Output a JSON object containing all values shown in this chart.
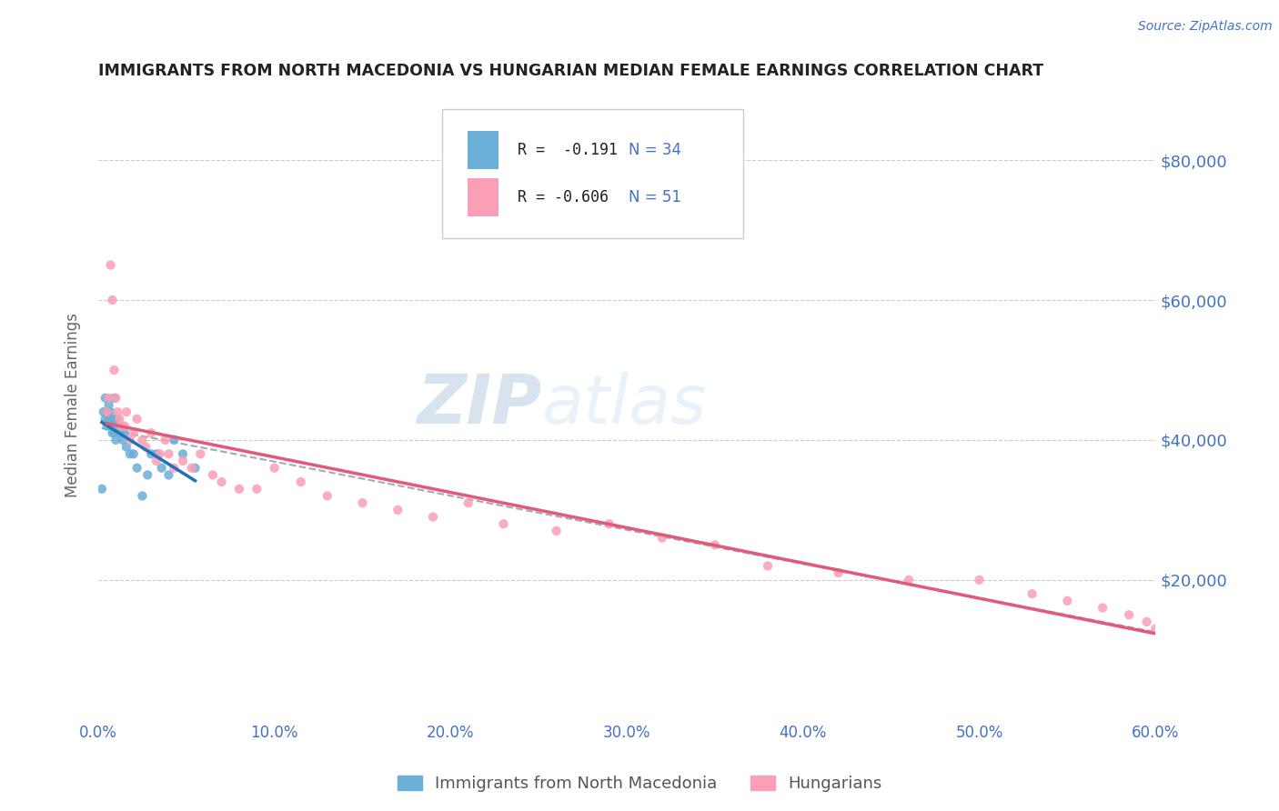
{
  "title": "IMMIGRANTS FROM NORTH MACEDONIA VS HUNGARIAN MEDIAN FEMALE EARNINGS CORRELATION CHART",
  "source": "Source: ZipAtlas.com",
  "ylabel": "Median Female Earnings",
  "xlim": [
    0.0,
    0.6
  ],
  "ylim": [
    0,
    90000
  ],
  "yticks": [
    0,
    20000,
    40000,
    60000,
    80000
  ],
  "ytick_labels": [
    "",
    "$20,000",
    "$40,000",
    "$60,000",
    "$80,000"
  ],
  "xticks": [
    0.0,
    0.1,
    0.2,
    0.3,
    0.4,
    0.5,
    0.6
  ],
  "xtick_labels": [
    "0.0%",
    "10.0%",
    "20.0%",
    "30.0%",
    "40.0%",
    "50.0%",
    "60.0%"
  ],
  "blue_color": "#6baed6",
  "pink_color": "#fa9fb5",
  "blue_line_color": "#2171b5",
  "pink_line_color": "#e05a7a",
  "gray_line_color": "#aaaaaa",
  "watermark_zip": "ZIP",
  "watermark_atlas": "atlas",
  "legend_r_blue": "R =  -0.191",
  "legend_n_blue": "N = 34",
  "legend_r_pink": "R = -0.606",
  "legend_n_pink": "N = 51",
  "legend_label_blue": "Immigrants from North Macedonia",
  "legend_label_pink": "Hungarians",
  "blue_x": [
    0.002,
    0.003,
    0.004,
    0.004,
    0.005,
    0.005,
    0.006,
    0.006,
    0.007,
    0.007,
    0.008,
    0.008,
    0.009,
    0.009,
    0.01,
    0.01,
    0.011,
    0.012,
    0.013,
    0.014,
    0.015,
    0.016,
    0.018,
    0.02,
    0.022,
    0.025,
    0.028,
    0.03,
    0.033,
    0.036,
    0.04,
    0.043,
    0.048,
    0.055
  ],
  "blue_y": [
    33000,
    44000,
    43000,
    46000,
    42000,
    44000,
    43000,
    45000,
    42000,
    44000,
    41000,
    43000,
    41000,
    46000,
    40000,
    43000,
    42000,
    41000,
    42000,
    40000,
    41000,
    39000,
    38000,
    38000,
    36000,
    32000,
    35000,
    38000,
    38000,
    36000,
    35000,
    40000,
    38000,
    36000
  ],
  "pink_x": [
    0.005,
    0.006,
    0.007,
    0.008,
    0.009,
    0.01,
    0.011,
    0.012,
    0.013,
    0.015,
    0.016,
    0.018,
    0.02,
    0.022,
    0.025,
    0.027,
    0.03,
    0.033,
    0.035,
    0.038,
    0.04,
    0.043,
    0.048,
    0.053,
    0.058,
    0.065,
    0.07,
    0.08,
    0.09,
    0.1,
    0.115,
    0.13,
    0.15,
    0.17,
    0.19,
    0.21,
    0.23,
    0.26,
    0.29,
    0.32,
    0.35,
    0.38,
    0.42,
    0.46,
    0.5,
    0.53,
    0.55,
    0.57,
    0.585,
    0.595,
    0.6
  ],
  "pink_y": [
    44000,
    46000,
    65000,
    60000,
    50000,
    46000,
    44000,
    43000,
    42000,
    42000,
    44000,
    40000,
    41000,
    43000,
    40000,
    39000,
    41000,
    37000,
    38000,
    40000,
    38000,
    36000,
    37000,
    36000,
    38000,
    35000,
    34000,
    33000,
    33000,
    36000,
    34000,
    32000,
    31000,
    30000,
    29000,
    31000,
    28000,
    27000,
    28000,
    26000,
    25000,
    22000,
    21000,
    20000,
    20000,
    18000,
    17000,
    16000,
    15000,
    14000,
    13000
  ],
  "background_color": "#ffffff",
  "grid_color": "#cccccc",
  "title_color": "#222222",
  "axis_color": "#4472c4"
}
